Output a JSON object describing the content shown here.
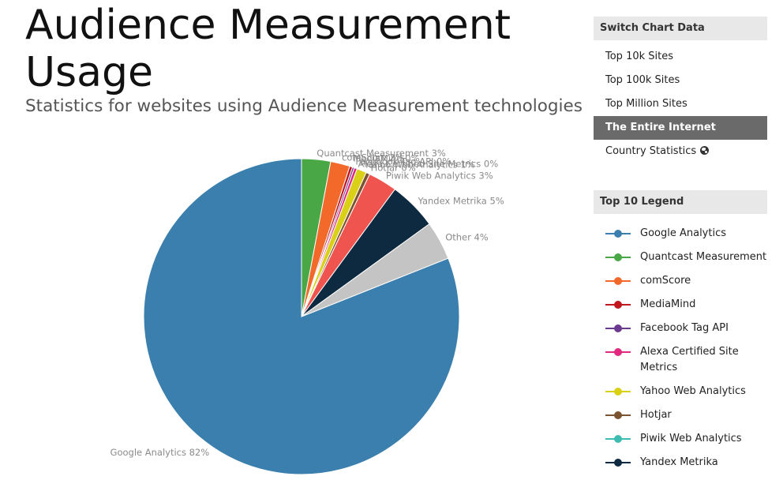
{
  "title": "Audience Measurement Usage",
  "subtitle": "Statistics for websites using Audience Measurement technologies",
  "switch_panel": {
    "header": "Switch Chart Data",
    "items": [
      {
        "label": "Top 10k Sites",
        "active": false
      },
      {
        "label": "Top 100k Sites",
        "active": false
      },
      {
        "label": "Top Million Sites",
        "active": false
      },
      {
        "label": "The Entire Internet",
        "active": true
      },
      {
        "label": "Country Statistics",
        "active": false,
        "icon": "globe-icon"
      }
    ]
  },
  "legend_panel": {
    "header": "Top 10 Legend",
    "items": [
      {
        "label": "Google Analytics",
        "color": "#3a7fad"
      },
      {
        "label": "Quantcast Measurement",
        "color": "#49a746"
      },
      {
        "label": "comScore",
        "color": "#f2692a"
      },
      {
        "label": "MediaMind",
        "color": "#c0161d"
      },
      {
        "label": "Facebook Tag API",
        "color": "#6b3a8f"
      },
      {
        "label": "Alexa Certified Site Metrics",
        "color": "#e0297f"
      },
      {
        "label": "Yahoo Web Analytics",
        "color": "#d9d017"
      },
      {
        "label": "Hotjar",
        "color": "#7a5430"
      },
      {
        "label": "Piwik Web Analytics",
        "color": "#3fbcb2"
      },
      {
        "label": "Yandex Metrika",
        "color": "#0d2a40"
      }
    ]
  },
  "chart_data": {
    "type": "pie",
    "title": "Audience Measurement Usage",
    "slices": [
      {
        "label": "Google Analytics 82%",
        "name": "Google Analytics",
        "value": 82,
        "color": "#3a7fad"
      },
      {
        "label": "Quantcast Measurement 3%",
        "name": "Quantcast Measurement",
        "value": 3,
        "color": "#49a746"
      },
      {
        "label": "comScore 2%",
        "name": "comScore",
        "value": 2,
        "color": "#f2692a"
      },
      {
        "label": "MediaMind 0%",
        "name": "MediaMind",
        "value": 0.3,
        "color": "#c0161d"
      },
      {
        "label": "Facebook Tag API 0%",
        "name": "Facebook Tag API",
        "value": 0.2,
        "color": "#6b3a8f"
      },
      {
        "label": "Alexa Certified Site Metrics 0%",
        "name": "Alexa Certified Site Metrics",
        "value": 0.3,
        "color": "#e0297f"
      },
      {
        "label": "Yahoo Web Analytics 1%",
        "name": "Yahoo Web Analytics",
        "value": 1,
        "color": "#d9d017"
      },
      {
        "label": "Hotjar 0%",
        "name": "Hotjar",
        "value": 0.4,
        "color": "#7a5430"
      },
      {
        "label": "Piwik Web Analytics 3%",
        "name": "Piwik Web Analytics",
        "value": 3,
        "color": "#f0544f"
      },
      {
        "label": "Yandex Metrika 5%",
        "name": "Yandex Metrika",
        "value": 5,
        "color": "#0d2a40"
      },
      {
        "label": "Other 4%",
        "name": "Other",
        "value": 4,
        "color": "#c4c4c4"
      }
    ]
  }
}
